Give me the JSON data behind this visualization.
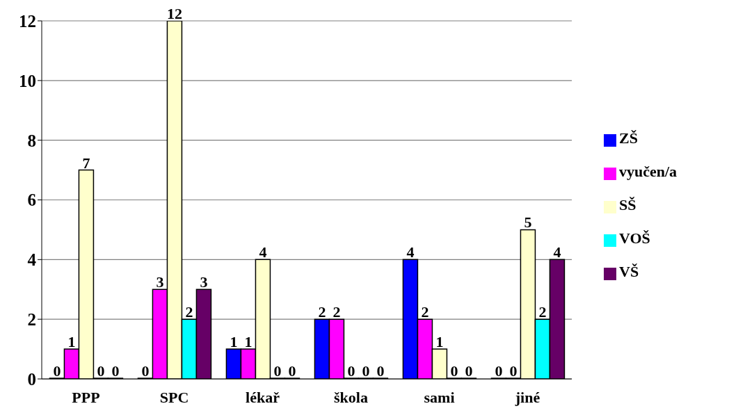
{
  "chart_data": {
    "type": "bar",
    "categories": [
      "PPP",
      "SPC",
      "lékař",
      "škola",
      "sami",
      "jiné"
    ],
    "series": [
      {
        "name": "ZŠ",
        "color": "#0000ff",
        "values": [
          0,
          0,
          1,
          2,
          4,
          0
        ]
      },
      {
        "name": "vyučen/a",
        "color": "#ff00ff",
        "values": [
          1,
          3,
          1,
          2,
          2,
          0
        ]
      },
      {
        "name": "SŠ",
        "color": "#ffffcc",
        "values": [
          7,
          12,
          4,
          0,
          1,
          5
        ]
      },
      {
        "name": "VOŠ",
        "color": "#00ffff",
        "values": [
          0,
          2,
          0,
          0,
          0,
          2
        ]
      },
      {
        "name": "VŠ",
        "color": "#660066",
        "values": [
          0,
          3,
          0,
          0,
          0,
          4
        ]
      }
    ],
    "ylim": [
      0,
      12
    ],
    "yticks": [
      0,
      2,
      4,
      6,
      8,
      10,
      12
    ],
    "grid": "y",
    "legend": "right",
    "data_labels": true
  }
}
